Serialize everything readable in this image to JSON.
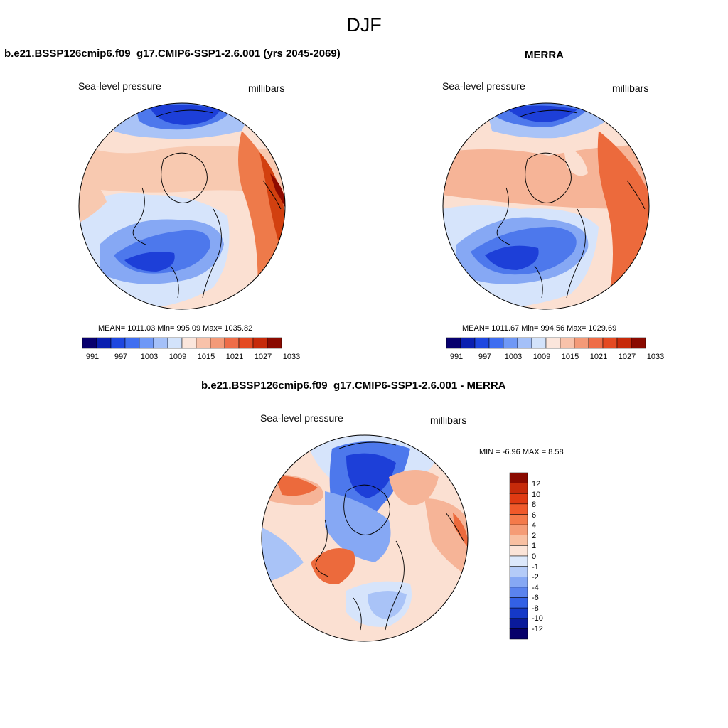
{
  "figure": {
    "title": "DJF"
  },
  "panels": [
    {
      "title": "b.e21.BSSP126cmip6.f09_g17.CMIP6-SSP1-2.6.001 (yrs 2045-2069)",
      "left_label": "Sea-level pressure",
      "right_label": "millibars",
      "stats": {
        "mean": "1011.03",
        "min": "995.09",
        "max": "1035.82"
      },
      "stats_text": "MEAN= 1011.03   Min= 995.09   Max= 1035.82"
    },
    {
      "title": "MERRA",
      "left_label": "Sea-level pressure",
      "right_label": "millibars",
      "stats": {
        "mean": "1011.67",
        "min": "994.56",
        "max": "1029.69"
      },
      "stats_text": "MEAN= 1011.67   Min= 994.56   Max= 1029.69"
    },
    {
      "title": "b.e21.BSSP126cmip6.f09_g17.CMIP6-SSP1-2.6.001 - MERRA",
      "left_label": "Sea-level pressure",
      "right_label": "millibars",
      "stats": {
        "min": "-6.96",
        "max": "8.58"
      },
      "stats_text": "MIN =  -6.96 MAX =   8.58"
    }
  ],
  "colorbars": {
    "absolute": {
      "tick_labels": [
        "991",
        "997",
        "1003",
        "1009",
        "1015",
        "1021",
        "1027",
        "1033"
      ],
      "colors": [
        "#08006e",
        "#0a1fb0",
        "#1e47e0",
        "#3f6ef0",
        "#6f98f6",
        "#a4c0f8",
        "#d3e3fb",
        "#fbe6dc",
        "#f8c2aa",
        "#f39a78",
        "#ee6d48",
        "#e44a22",
        "#c62a0a",
        "#8a0a00"
      ]
    },
    "difference": {
      "tick_labels": [
        "12",
        "10",
        "8",
        "6",
        "4",
        "2",
        "1",
        "0",
        "-1",
        "-2",
        "-4",
        "-6",
        "-8",
        "-10",
        "-12"
      ],
      "colors": [
        "#8a0a00",
        "#c62a0a",
        "#e03a12",
        "#f0592a",
        "#f47a4a",
        "#f59c76",
        "#f8c0a2",
        "#fbe4d8",
        "#dce8fb",
        "#b4cbf8",
        "#86a8f4",
        "#5a83ee",
        "#3361e6",
        "#1539c8",
        "#0a1a9a",
        "#06006a"
      ]
    }
  },
  "palette": {
    "deep_blue": "#1d3fd8",
    "blue": "#4d78ec",
    "light_blue": "#a9c3f7",
    "pale_blue": "#d6e4fb",
    "pale_red": "#fbe0d2",
    "light_red": "#f6b497",
    "red": "#ec6a3c",
    "deep_red": "#c42e0a"
  }
}
